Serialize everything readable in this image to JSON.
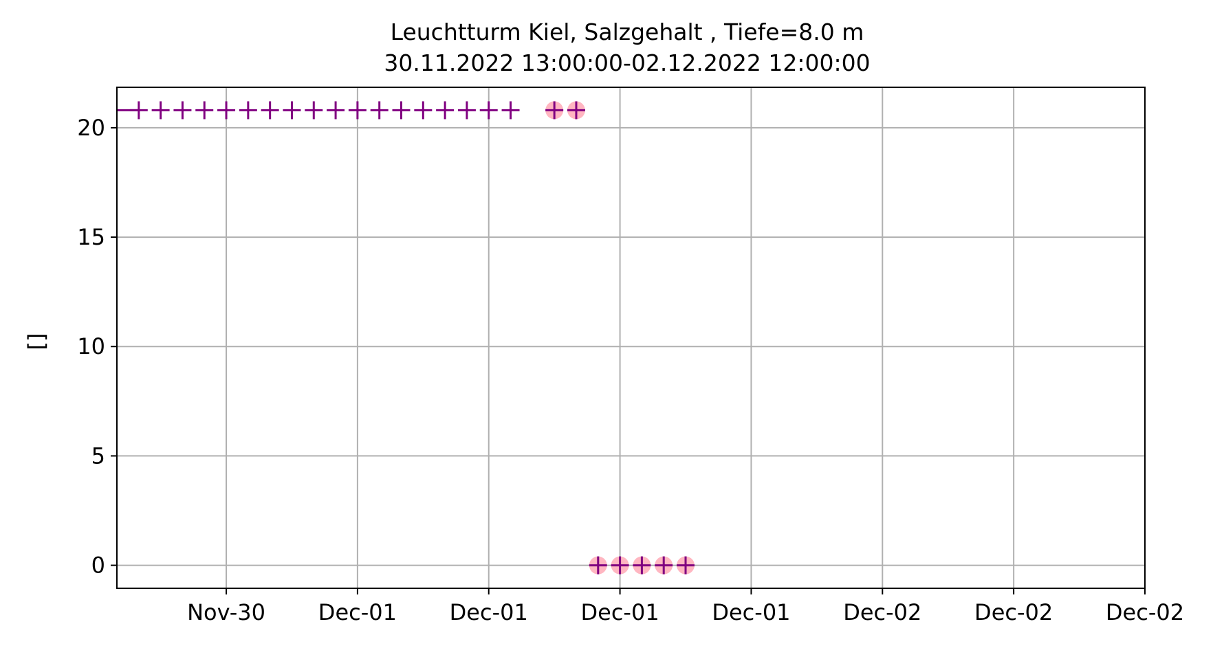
{
  "chart_data": {
    "type": "scatter",
    "title": "Leuchtturm Kiel, Salzgehalt , Tiefe=8.0 m",
    "subtitle": "30.11.2022 13:00:00-02.12.2022 12:00:00",
    "xlabel": "",
    "ylabel": "[]",
    "x_unit": "days",
    "xlim": [
      -0.5,
      4.2
    ],
    "ylim": [
      -1.05,
      21.85
    ],
    "grid": true,
    "x_ticks": [
      {
        "value": 0,
        "label": "Nov-30"
      },
      {
        "value": 0.6,
        "label": "Dec-01"
      },
      {
        "value": 1.2,
        "label": "Dec-01"
      },
      {
        "value": 1.8,
        "label": "Dec-01"
      },
      {
        "value": 2.4,
        "label": "Dec-01"
      },
      {
        "value": 3.0,
        "label": "Dec-02"
      },
      {
        "value": 3.6,
        "label": "Dec-02"
      },
      {
        "value": 4.2,
        "label": "Dec-02"
      }
    ],
    "y_ticks": [
      {
        "value": 0,
        "label": "0"
      },
      {
        "value": 5,
        "label": "5"
      },
      {
        "value": 10,
        "label": "10"
      },
      {
        "value": 15,
        "label": "15"
      },
      {
        "value": 20,
        "label": "20"
      }
    ],
    "series": [
      {
        "marker": "plus",
        "color": "#800080",
        "x": [
          -0.4,
          -0.3,
          -0.2,
          -0.1,
          0.0,
          0.1,
          0.2,
          0.3,
          0.4,
          0.5,
          0.6,
          0.7,
          0.8,
          0.9,
          1.0,
          1.1,
          1.2,
          1.3,
          1.5,
          1.6,
          1.7,
          1.8,
          1.9,
          2.0,
          2.1
        ],
        "y": [
          20.8,
          20.8,
          20.8,
          20.8,
          20.8,
          20.8,
          20.8,
          20.8,
          20.8,
          20.8,
          20.8,
          20.8,
          20.8,
          20.8,
          20.8,
          20.8,
          20.8,
          20.8,
          20.8,
          20.8,
          0,
          0,
          0,
          0,
          0
        ]
      },
      {
        "marker": "circle",
        "color": "#ffb6c1",
        "x": [
          1.5,
          1.6,
          1.7,
          1.8,
          1.9,
          2.0,
          2.1
        ],
        "y": [
          20.8,
          20.8,
          0,
          0,
          0,
          0,
          0
        ]
      }
    ],
    "line_segment": {
      "color": "#800080",
      "x": [
        -0.5,
        -0.4
      ],
      "y": [
        20.8,
        20.8
      ]
    }
  }
}
